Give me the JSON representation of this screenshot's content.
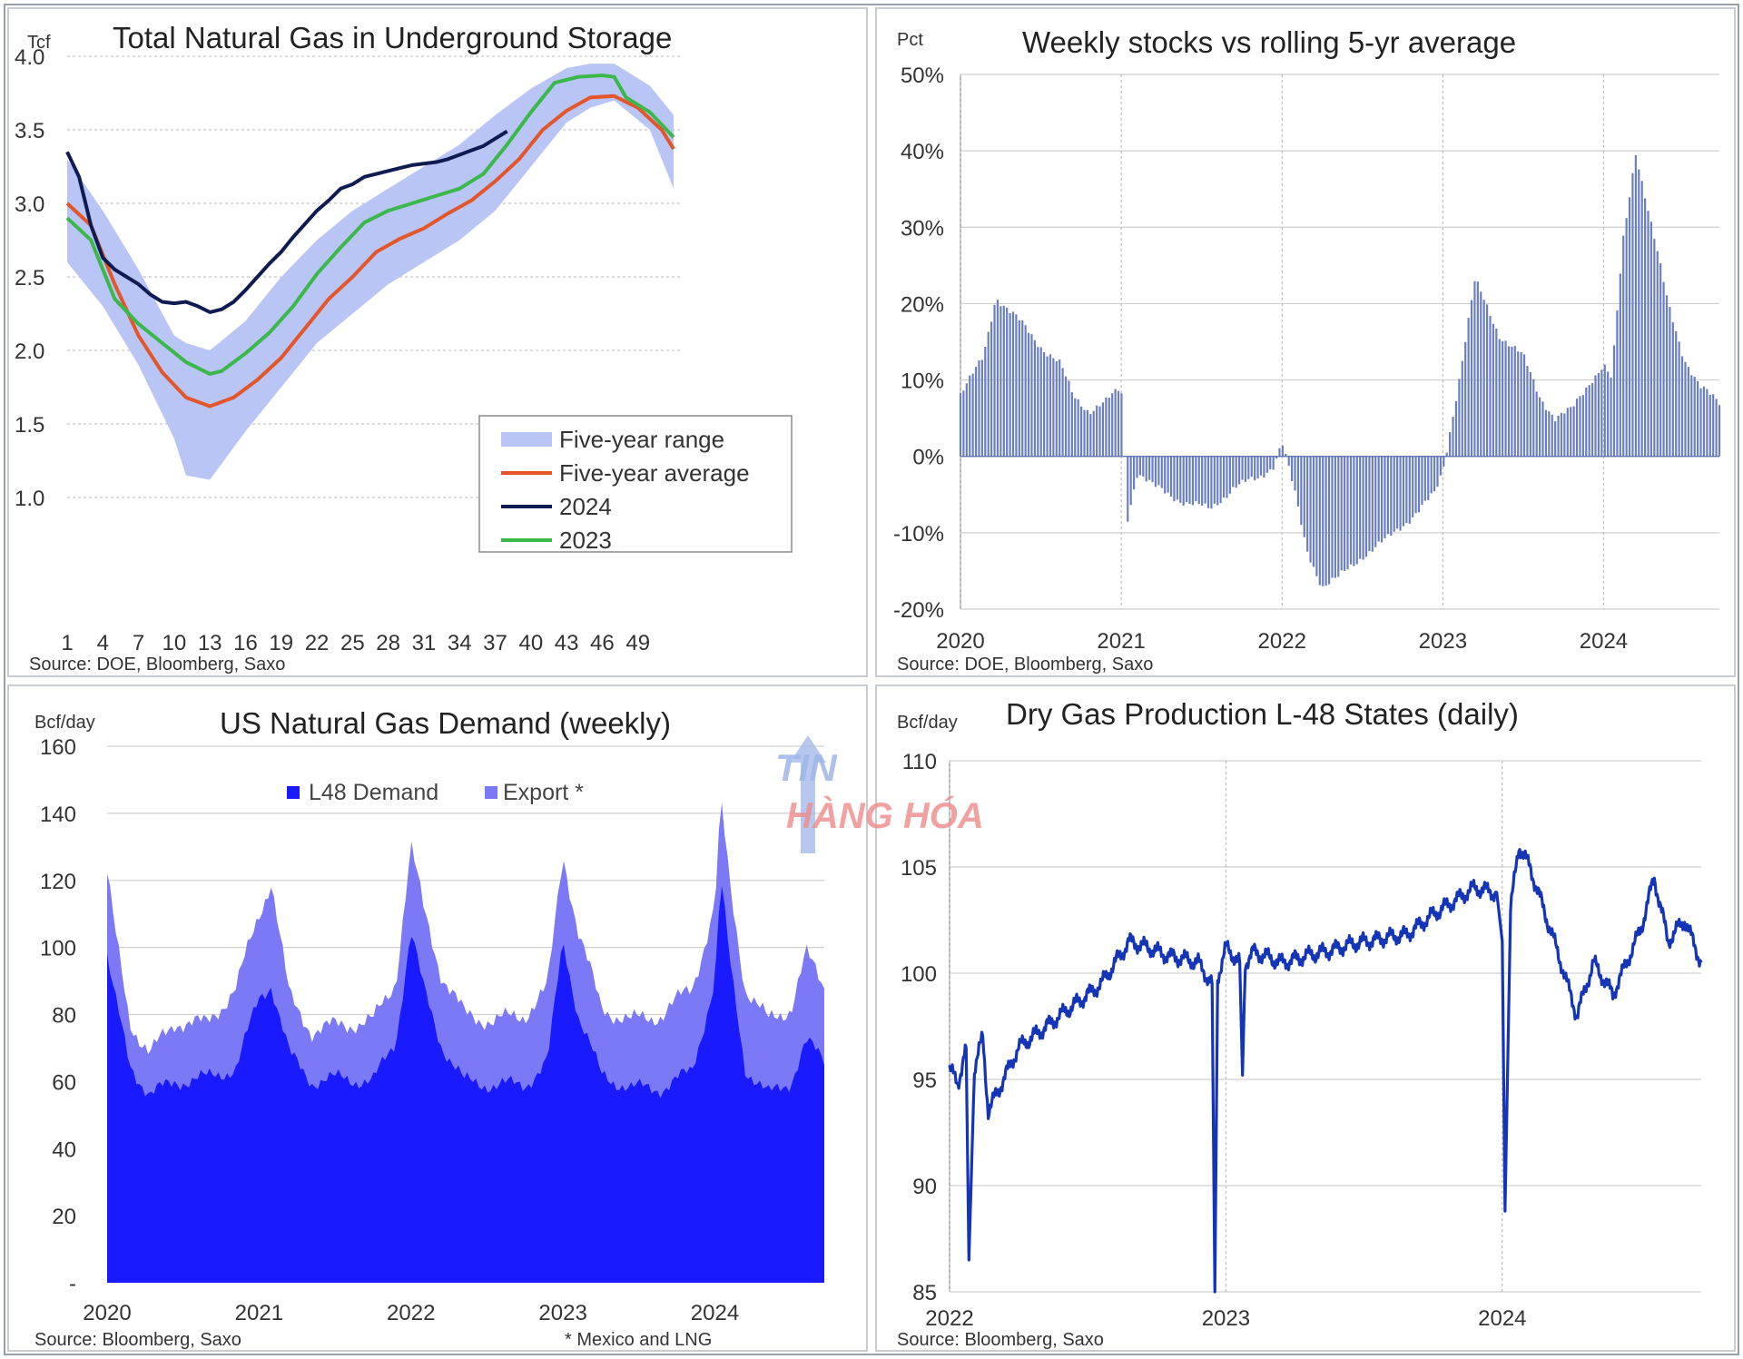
{
  "watermark": {
    "line1": "TIN",
    "line2": "HÀNG HÓA"
  },
  "charts": [
    {
      "type": "line",
      "title": "Total Natural Gas in Underground Storage",
      "unit": "Tcf",
      "source": "Source: DOE, Bloomberg, Saxo",
      "ylim": [
        1.0,
        4.0
      ],
      "y_ticks": [
        "1.0",
        "1.5",
        "2.0",
        "2.5",
        "3.0",
        "3.5",
        "4.0"
      ],
      "x_ticks": [
        "1",
        "4",
        "7",
        "10",
        "13",
        "16",
        "19",
        "22",
        "25",
        "28",
        "31",
        "34",
        "37",
        "40",
        "43",
        "46",
        "49"
      ],
      "xlim": [
        1,
        52
      ],
      "legend": [
        {
          "label": "Five-year range",
          "color": "#b8c5f5",
          "kind": "band"
        },
        {
          "label": "Five-year average",
          "color": "#e4562a",
          "kind": "line"
        },
        {
          "label": "2024",
          "color": "#0f1c52",
          "kind": "line"
        },
        {
          "label": "2023",
          "color": "#3bb84a",
          "kind": "line"
        }
      ],
      "range_x": [
        1,
        4,
        7,
        10,
        11,
        13,
        16,
        19,
        22,
        25,
        28,
        31,
        34,
        37,
        40,
        43,
        45,
        47,
        50,
        52
      ],
      "range_low": [
        2.6,
        2.3,
        1.9,
        1.4,
        1.15,
        1.12,
        1.45,
        1.75,
        2.05,
        2.25,
        2.45,
        2.6,
        2.75,
        2.95,
        3.25,
        3.55,
        3.65,
        3.7,
        3.5,
        3.1
      ],
      "range_high": [
        3.3,
        2.95,
        2.55,
        2.1,
        2.05,
        2.0,
        2.2,
        2.5,
        2.75,
        2.95,
        3.1,
        3.25,
        3.4,
        3.6,
        3.78,
        3.92,
        3.95,
        3.95,
        3.8,
        3.6
      ],
      "avg_x": [
        1,
        3,
        5,
        7,
        9,
        11,
        13,
        15,
        17,
        19,
        21,
        23,
        25,
        27,
        29,
        31,
        33,
        35,
        37,
        39,
        41,
        43,
        45,
        47,
        49,
        51,
        52
      ],
      "avg_y": [
        3.0,
        2.85,
        2.45,
        2.1,
        1.85,
        1.68,
        1.62,
        1.68,
        1.8,
        1.95,
        2.15,
        2.35,
        2.5,
        2.67,
        2.76,
        2.83,
        2.93,
        3.02,
        3.15,
        3.3,
        3.5,
        3.63,
        3.72,
        3.73,
        3.65,
        3.5,
        3.37
      ],
      "y2024_x": [
        1,
        2,
        3,
        4,
        5,
        6,
        7,
        8,
        9,
        10,
        11,
        12,
        13,
        14,
        15,
        16,
        17,
        18,
        19,
        20,
        21,
        22,
        23,
        24,
        25,
        26,
        27,
        28,
        29,
        30,
        31,
        32,
        33,
        34,
        35,
        36,
        37,
        38
      ],
      "y2024_y": [
        3.35,
        3.18,
        2.85,
        2.63,
        2.55,
        2.5,
        2.45,
        2.38,
        2.33,
        2.32,
        2.33,
        2.3,
        2.26,
        2.28,
        2.33,
        2.41,
        2.5,
        2.59,
        2.67,
        2.77,
        2.86,
        2.95,
        3.02,
        3.1,
        3.13,
        3.18,
        3.2,
        3.22,
        3.24,
        3.26,
        3.27,
        3.28,
        3.3,
        3.33,
        3.36,
        3.39,
        3.44,
        3.49
      ],
      "y2023_x": [
        1,
        3,
        5,
        7,
        9,
        11,
        13,
        14,
        16,
        18,
        20,
        22,
        24,
        26,
        28,
        30,
        32,
        34,
        36,
        38,
        40,
        42,
        44,
        46,
        47,
        48,
        50,
        52
      ],
      "y2023_y": [
        2.9,
        2.75,
        2.35,
        2.18,
        2.05,
        1.92,
        1.84,
        1.86,
        1.98,
        2.12,
        2.3,
        2.52,
        2.7,
        2.87,
        2.95,
        3.0,
        3.05,
        3.1,
        3.2,
        3.4,
        3.62,
        3.82,
        3.86,
        3.87,
        3.86,
        3.72,
        3.62,
        3.45
      ]
    },
    {
      "type": "bar",
      "title": "Weekly stocks vs rolling 5-yr average",
      "unit": "Pct",
      "source": "Source: DOE, Bloomberg, Saxo",
      "ylim": [
        -20,
        50
      ],
      "y_ticks": [
        "-20%",
        "-10%",
        "0%",
        "10%",
        "20%",
        "30%",
        "40%",
        "50%"
      ],
      "x_ticks": [
        "2020",
        "2021",
        "2022",
        "2023",
        "2024"
      ],
      "xlim": [
        2020.0,
        2024.72
      ],
      "color": "#6a7fc0",
      "anchors_x": [
        2020.0,
        2020.06,
        2020.14,
        2020.22,
        2020.3,
        2020.4,
        2020.52,
        2020.62,
        2020.7,
        2020.8,
        2020.9,
        2021.0,
        2021.04,
        2021.1,
        2021.2,
        2021.3,
        2021.4,
        2021.55,
        2021.7,
        2021.85,
        2021.95,
        2022.0,
        2022.08,
        2022.15,
        2022.25,
        2022.35,
        2022.5,
        2022.65,
        2022.8,
        2022.95,
        2023.0,
        2023.1,
        2023.2,
        2023.35,
        2023.5,
        2023.6,
        2023.7,
        2023.8,
        2023.92,
        2024.0,
        2024.05,
        2024.12,
        2024.2,
        2024.3,
        2024.4,
        2024.5,
        2024.6,
        2024.72
      ],
      "anchors_y": [
        8,
        10,
        13,
        21,
        19,
        17,
        14,
        12,
        8,
        6,
        7,
        9,
        -8,
        -2,
        -4,
        -5,
        -6,
        -7,
        -4,
        -3,
        -1,
        2,
        -5,
        -12,
        -17,
        -16,
        -13,
        -11,
        -8,
        -5,
        -2,
        10,
        23,
        16,
        13,
        8,
        5,
        6,
        10,
        12,
        10,
        28,
        40,
        30,
        20,
        13,
        9,
        7
      ]
    },
    {
      "type": "area",
      "title": "US Natural Gas Demand (weekly)",
      "unit": "Bcf/day",
      "source": "Source: Bloomberg, Saxo",
      "note": "* Mexico and LNG",
      "ylim": [
        0,
        160
      ],
      "y_ticks": [
        "-",
        "20",
        "40",
        "60",
        "80",
        "100",
        "120",
        "140",
        "160"
      ],
      "x_ticks": [
        "2020",
        "2021",
        "2022",
        "2023",
        "2024"
      ],
      "xlim": [
        2020.0,
        2024.72
      ],
      "series": [
        {
          "name": "L48 Demand",
          "color": "#1a1aff",
          "x": [
            2020.0,
            2020.05,
            2020.15,
            2020.28,
            2020.45,
            2020.65,
            2020.85,
            2021.0,
            2021.08,
            2021.2,
            2021.35,
            2021.55,
            2021.75,
            2021.9,
            2022.0,
            2022.08,
            2022.2,
            2022.35,
            2022.55,
            2022.75,
            2022.9,
            2023.0,
            2023.1,
            2023.25,
            2023.45,
            2023.65,
            2023.85,
            2024.0,
            2024.04,
            2024.1,
            2024.2,
            2024.35,
            2024.5,
            2024.6,
            2024.72
          ],
          "y": [
            97,
            85,
            65,
            56,
            60,
            61,
            64,
            85,
            89,
            68,
            60,
            61,
            60,
            72,
            105,
            88,
            71,
            60,
            59,
            59,
            66,
            102,
            80,
            62,
            58,
            58,
            63,
            90,
            120,
            95,
            64,
            56,
            60,
            72,
            66
          ]
        },
        {
          "name": "Export *",
          "color": "#7b79f5",
          "x": [
            2020.0,
            2020.05,
            2020.15,
            2020.28,
            2020.45,
            2020.65,
            2020.85,
            2021.0,
            2021.08,
            2021.2,
            2021.35,
            2021.55,
            2021.75,
            2021.9,
            2022.0,
            2022.08,
            2022.2,
            2022.35,
            2022.55,
            2022.75,
            2022.9,
            2023.0,
            2023.1,
            2023.25,
            2023.45,
            2023.65,
            2023.85,
            2024.0,
            2024.04,
            2024.1,
            2024.2,
            2024.35,
            2024.5,
            2024.6,
            2024.72
          ],
          "y": [
            122,
            105,
            78,
            68,
            78,
            77,
            88,
            110,
            120,
            85,
            75,
            77,
            78,
            90,
            130,
            112,
            92,
            80,
            78,
            80,
            88,
            128,
            105,
            82,
            78,
            80,
            88,
            112,
            143,
            118,
            88,
            78,
            82,
            98,
            88
          ]
        }
      ]
    },
    {
      "type": "line",
      "title": "Dry Gas Production L-48 States (daily)",
      "unit": "Bcf/day",
      "source": "Source: Bloomberg, Saxo",
      "ylim": [
        85,
        110
      ],
      "y_ticks": [
        "85",
        "90",
        "95",
        "100",
        "105",
        "110"
      ],
      "x_ticks": [
        "2022",
        "2023",
        "2024"
      ],
      "xlim": [
        2022.0,
        2024.72
      ],
      "color": "#1535b8",
      "x": [
        2022.0,
        2022.03,
        2022.06,
        2022.07,
        2022.09,
        2022.12,
        2022.14,
        2022.25,
        2022.4,
        2022.55,
        2022.65,
        2022.8,
        2022.9,
        2022.95,
        2022.96,
        2022.97,
        2023.0,
        2023.05,
        2023.06,
        2023.07,
        2023.1,
        2023.2,
        2023.35,
        2023.5,
        2023.65,
        2023.8,
        2023.9,
        2023.98,
        2024.0,
        2024.01,
        2024.03,
        2024.06,
        2024.1,
        2024.15,
        2024.2,
        2024.27,
        2024.33,
        2024.4,
        2024.5,
        2024.55,
        2024.6,
        2024.66,
        2024.72
      ],
      "y": [
        95.5,
        94.8,
        96.5,
        86.5,
        95.5,
        97.0,
        93.5,
        96.5,
        98.0,
        99.5,
        101.5,
        100.8,
        100.5,
        99.5,
        85.0,
        99.8,
        101.2,
        100.5,
        95.2,
        100.5,
        101.0,
        100.5,
        101.0,
        101.5,
        101.8,
        103.2,
        104.0,
        103.8,
        101.5,
        88.8,
        103.0,
        106.0,
        105.0,
        103.0,
        101.0,
        98.0,
        100.5,
        99.0,
        102.0,
        104.5,
        101.5,
        102.5,
        100.5
      ]
    }
  ]
}
